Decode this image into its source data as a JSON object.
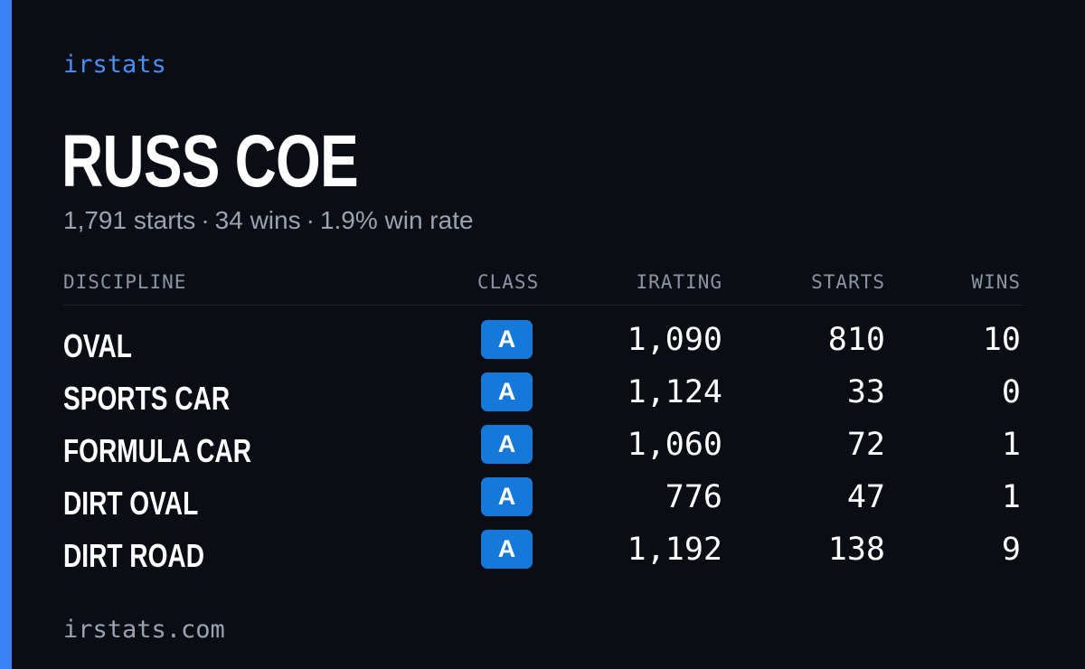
{
  "brand": "irstats",
  "driver": {
    "name": "RUSS COE",
    "starts_text": "1,791 starts",
    "wins_text": "34 wins",
    "win_rate_text": "1.9% win rate",
    "separator": "·"
  },
  "table": {
    "headers": {
      "discipline": "DISCIPLINE",
      "class": "CLASS",
      "irating": "IRATING",
      "starts": "STARTS",
      "wins": "WINS"
    },
    "rows": [
      {
        "discipline": "OVAL",
        "class": "A",
        "irating": "1,090",
        "starts": "810",
        "wins": "10"
      },
      {
        "discipline": "SPORTS CAR",
        "class": "A",
        "irating": "1,124",
        "starts": "33",
        "wins": "0"
      },
      {
        "discipline": "FORMULA CAR",
        "class": "A",
        "irating": "1,060",
        "starts": "72",
        "wins": "1"
      },
      {
        "discipline": "DIRT OVAL",
        "class": "A",
        "irating": "776",
        "starts": "47",
        "wins": "1"
      },
      {
        "discipline": "DIRT ROAD",
        "class": "A",
        "irating": "1,192",
        "starts": "138",
        "wins": "9"
      }
    ]
  },
  "footer": "irstats.com",
  "colors": {
    "accent": "#3b82f6",
    "badge": "#1679d9",
    "background": "#0a0d14"
  }
}
